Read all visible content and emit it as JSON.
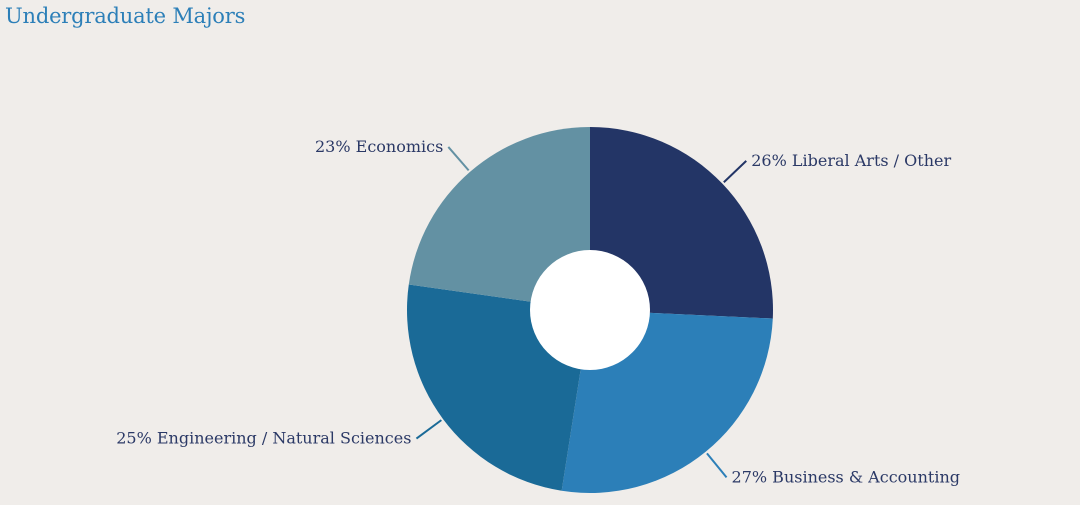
{
  "chart_data": {
    "type": "pie",
    "variant": "donut",
    "title": "Undergraduate Majors",
    "legend": "none",
    "categories": [
      "Liberal Arts / Other",
      "Business & Accounting",
      "Engineering / Natural Sciences",
      "Economics"
    ],
    "values": [
      26,
      27,
      25,
      23
    ],
    "value_suffix": "%",
    "labels": [
      "26% Liberal Arts / Other",
      "27% Business & Accounting",
      "25% Engineering / Natural Sciences",
      "23% Economics"
    ],
    "colors": [
      "#233566",
      "#2c7fb8",
      "#1a6a97",
      "#6391a3"
    ],
    "title_color": "#2c7fb8",
    "label_color": "#2b3966",
    "background_color": "#f0edea"
  }
}
